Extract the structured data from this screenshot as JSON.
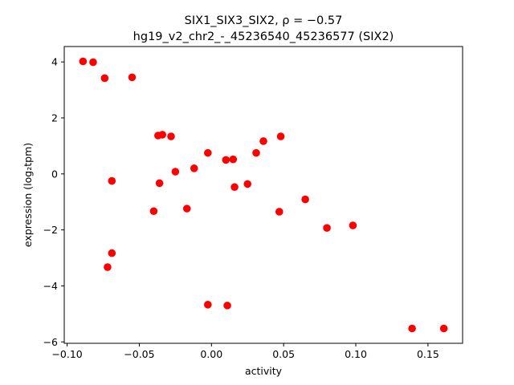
{
  "chart_data": {
    "type": "scatter",
    "title_line1": "SIX1_SIX3_SIX2, ρ = −0.57",
    "title_line2": "hg19_v2_chr2_-_45236540_45236577 (SIX2)",
    "xlabel": "activity",
    "ylabel": "expression (log₂tpm)",
    "xlim": [
      -0.102,
      0.174
    ],
    "ylim": [
      -6.05,
      4.55
    ],
    "xticks": [
      -0.1,
      -0.05,
      0.0,
      0.05,
      0.1,
      0.15
    ],
    "xtick_labels": [
      "−0.10",
      "−0.05",
      "0.00",
      "0.05",
      "0.10",
      "0.15"
    ],
    "yticks": [
      -6,
      -4,
      -2,
      0,
      2,
      4
    ],
    "ytick_labels": [
      "−6",
      "−4",
      "−2",
      "0",
      "2",
      "4"
    ],
    "grid": false,
    "marker_color": "#ff0000",
    "points": [
      {
        "x": -0.089,
        "y": 4.02
      },
      {
        "x": -0.082,
        "y": 3.99
      },
      {
        "x": -0.074,
        "y": 3.42
      },
      {
        "x": -0.055,
        "y": 3.45
      },
      {
        "x": -0.037,
        "y": 1.37
      },
      {
        "x": -0.034,
        "y": 1.4
      },
      {
        "x": -0.028,
        "y": 1.34
      },
      {
        "x": -0.0025,
        "y": 0.75
      },
      {
        "x": -0.025,
        "y": 0.08
      },
      {
        "x": -0.012,
        "y": 0.2
      },
      {
        "x": 0.01,
        "y": 0.5
      },
      {
        "x": 0.015,
        "y": 0.52
      },
      {
        "x": 0.031,
        "y": 0.75
      },
      {
        "x": 0.036,
        "y": 1.17
      },
      {
        "x": 0.048,
        "y": 1.34
      },
      {
        "x": -0.069,
        "y": -0.25
      },
      {
        "x": -0.036,
        "y": -0.33
      },
      {
        "x": 0.016,
        "y": -0.47
      },
      {
        "x": 0.025,
        "y": -0.36
      },
      {
        "x": -0.04,
        "y": -1.33
      },
      {
        "x": -0.017,
        "y": -1.24
      },
      {
        "x": 0.047,
        "y": -1.35
      },
      {
        "x": 0.065,
        "y": -0.91
      },
      {
        "x": 0.08,
        "y": -1.93
      },
      {
        "x": 0.098,
        "y": -1.84
      },
      {
        "x": -0.069,
        "y": -2.83
      },
      {
        "x": -0.072,
        "y": -3.33
      },
      {
        "x": -0.0025,
        "y": -4.67
      },
      {
        "x": 0.011,
        "y": -4.7
      },
      {
        "x": 0.139,
        "y": -5.52
      },
      {
        "x": 0.161,
        "y": -5.52
      }
    ]
  }
}
